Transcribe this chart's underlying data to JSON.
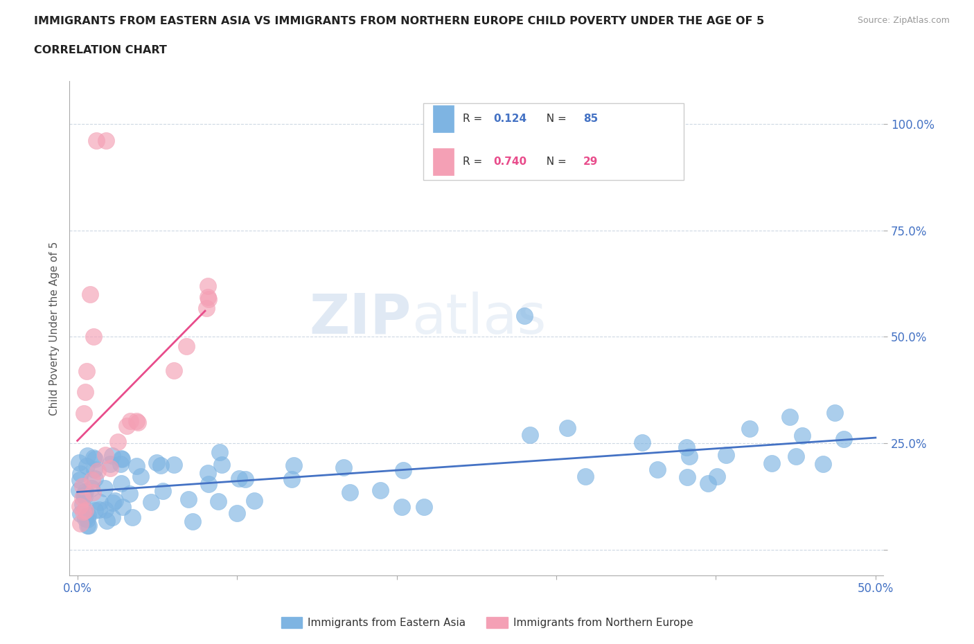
{
  "title_line1": "IMMIGRANTS FROM EASTERN ASIA VS IMMIGRANTS FROM NORTHERN EUROPE CHILD POVERTY UNDER THE AGE OF 5",
  "title_line2": "CORRELATION CHART",
  "source": "Source: ZipAtlas.com",
  "ylabel": "Child Poverty Under the Age of 5",
  "color_blue": "#7EB4E2",
  "color_pink": "#F4A0B5",
  "line_blue": "#4472C4",
  "line_pink": "#E84C8B",
  "R_blue": 0.124,
  "N_blue": 85,
  "R_pink": 0.74,
  "N_pink": 29,
  "watermark_zip": "ZIP",
  "watermark_atlas": "atlas",
  "legend_label_blue": "Immigrants from Eastern Asia",
  "legend_label_pink": "Immigrants from Northern Europe"
}
